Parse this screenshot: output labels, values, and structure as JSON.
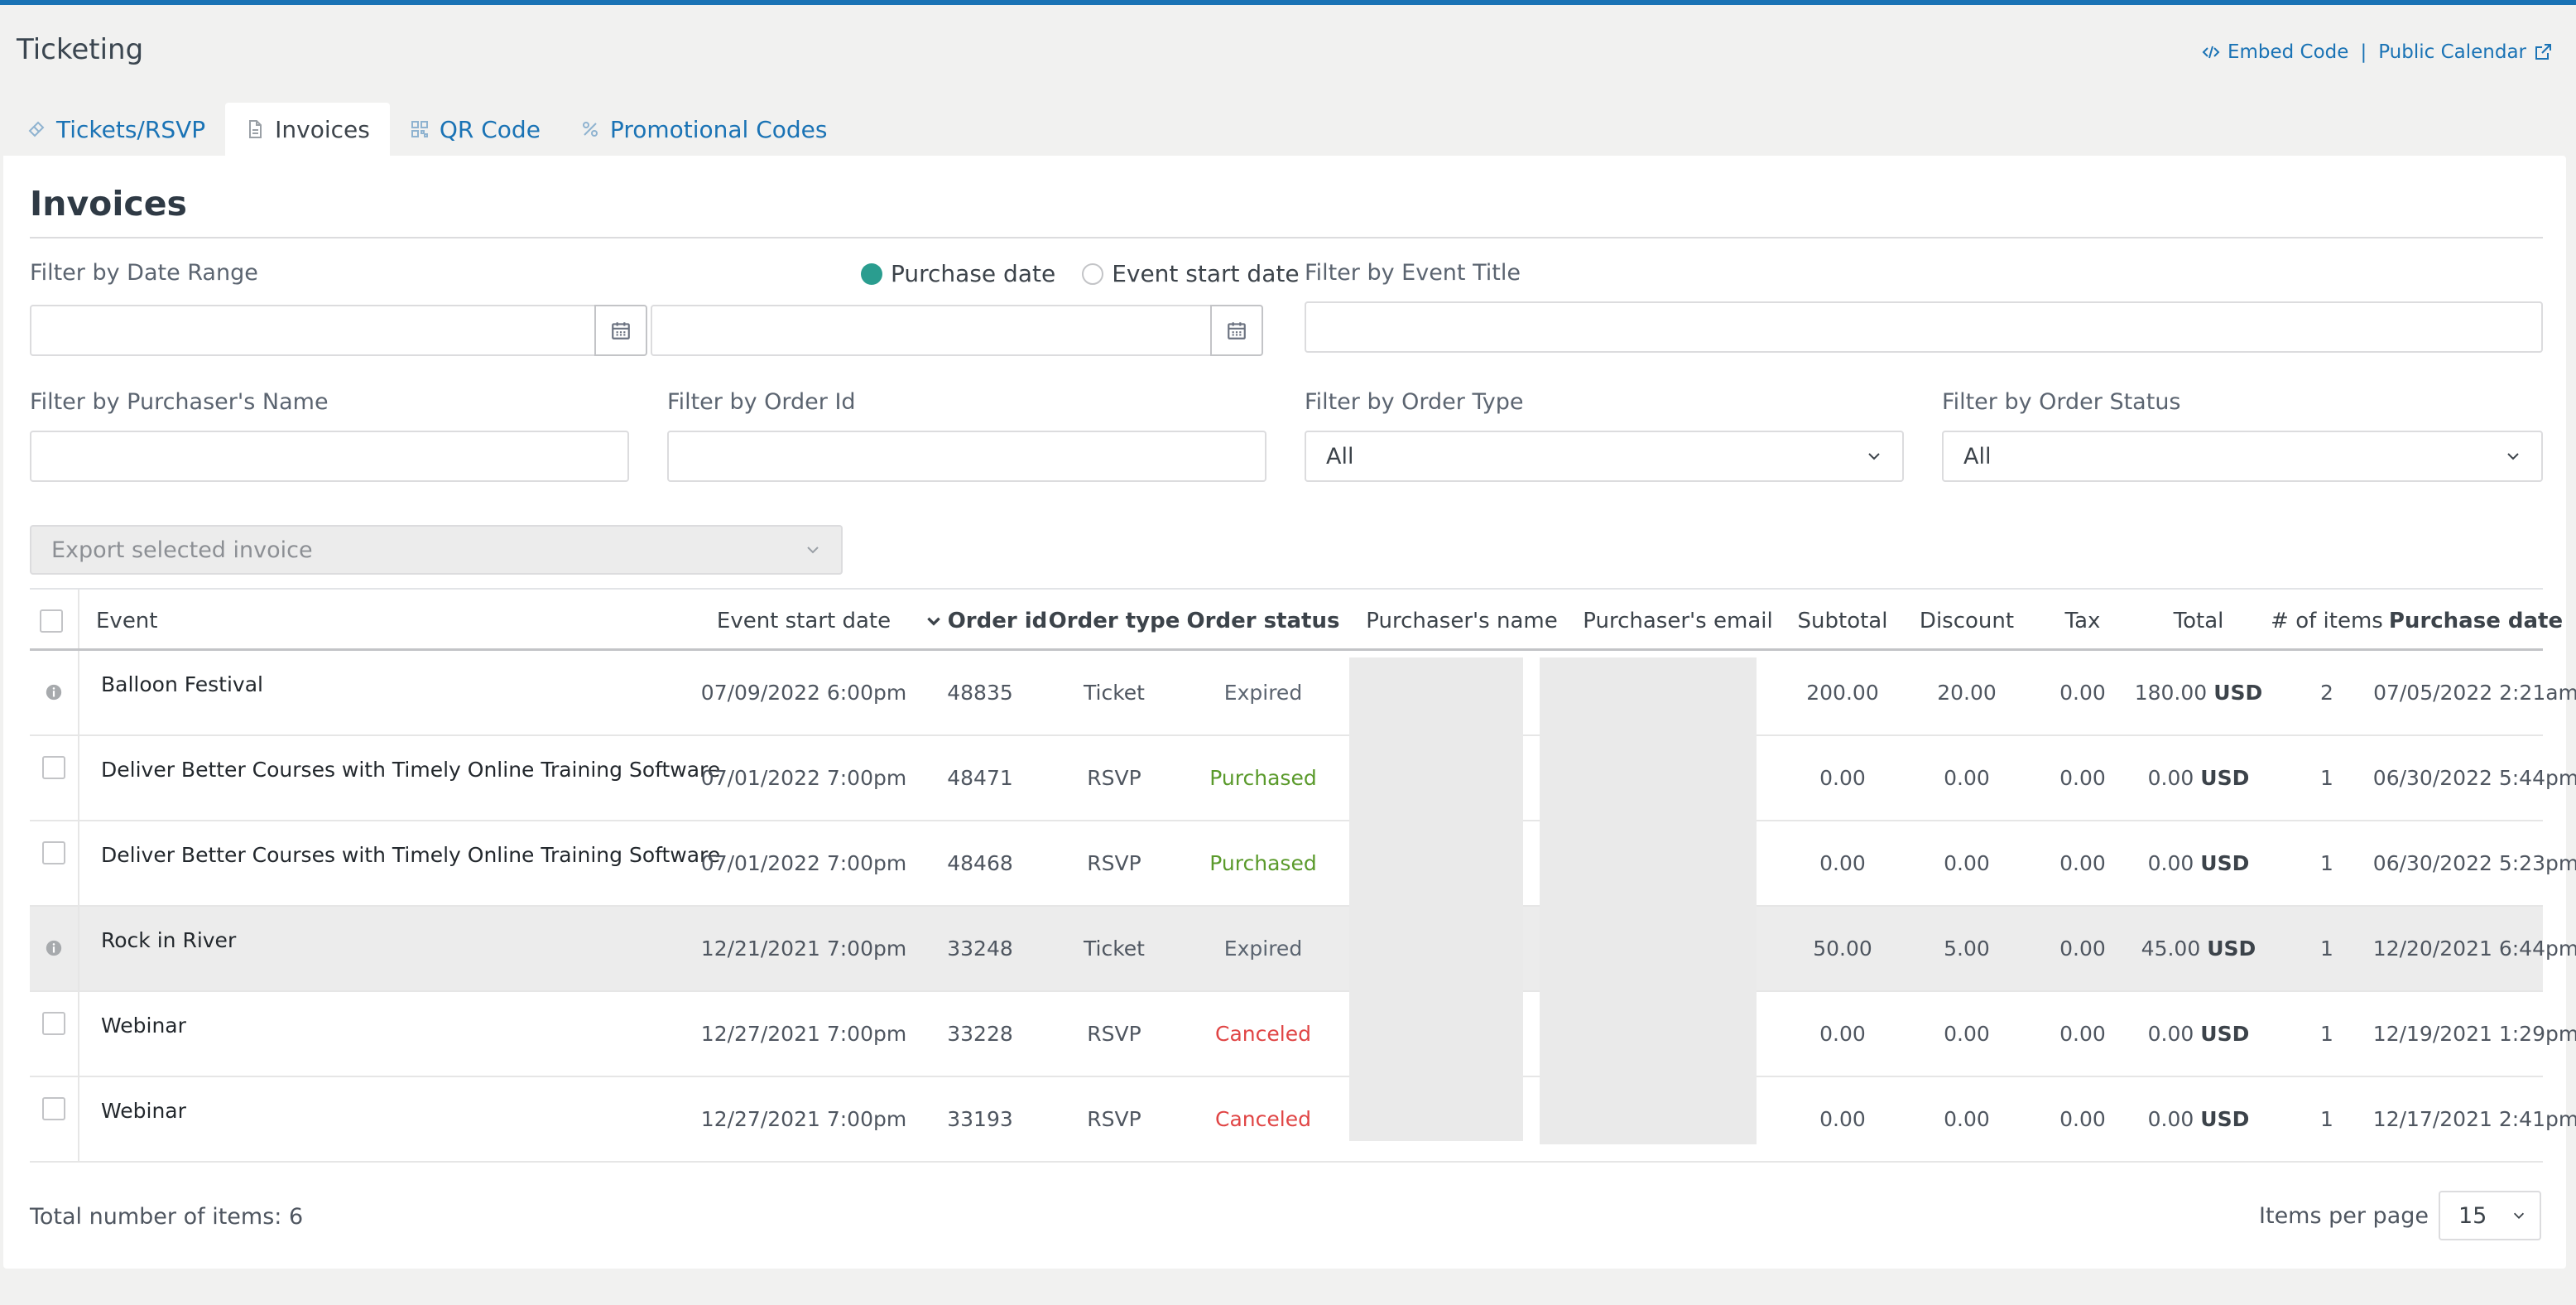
{
  "page": {
    "title": "Ticketing"
  },
  "top_links": {
    "embed": "Embed Code",
    "separator": "|",
    "calendar": "Public Calendar"
  },
  "tabs": [
    {
      "label": "Tickets/RSVP",
      "icon": "ticket-icon"
    },
    {
      "label": "Invoices",
      "icon": "document-icon",
      "active": true
    },
    {
      "label": "QR Code",
      "icon": "qr-icon"
    },
    {
      "label": "Promotional Codes",
      "icon": "percent-icon"
    }
  ],
  "invoices": {
    "title": "Invoices"
  },
  "filters": {
    "date_range_label": "Filter by Date Range",
    "radio_purchase": "Purchase date",
    "radio_event": "Event start date",
    "event_title_label": "Filter by Event Title",
    "purchaser_label": "Filter by Purchaser's Name",
    "order_id_label": "Filter by Order Id",
    "order_type_label": "Filter by Order Type",
    "order_type_value": "All",
    "order_status_label": "Filter by Order Status",
    "order_status_value": "All"
  },
  "export": {
    "label": "Export selected invoice"
  },
  "table": {
    "headers": {
      "event": "Event",
      "start": "Event start date",
      "order_id": "Order id",
      "order_type": "Order type",
      "order_status": "Order status",
      "purchaser_name": "Purchaser's name",
      "purchaser_email": "Purchaser's email",
      "subtotal": "Subtotal",
      "discount": "Discount",
      "tax": "Tax",
      "total": "Total",
      "items": "# of items",
      "purchase_date": "Purchase date"
    },
    "rows": [
      {
        "event": "Balloon Festival",
        "start": "07/09/2022 6:00pm",
        "order_id": "48835",
        "type": "Ticket",
        "status": "Expired",
        "subtotal": "200.00",
        "discount": "20.00",
        "tax": "0.00",
        "total": "180.00",
        "currency": "USD",
        "items": "2",
        "purchase": "07/05/2022 2:21am"
      },
      {
        "event": "Deliver Better Courses with Timely Online Training Software",
        "start": "07/01/2022 7:00pm",
        "order_id": "48471",
        "type": "RSVP",
        "status": "Purchased",
        "subtotal": "0.00",
        "discount": "0.00",
        "tax": "0.00",
        "total": "0.00",
        "currency": "USD",
        "items": "1",
        "purchase": "06/30/2022 5:44pm"
      },
      {
        "event": "Deliver Better Courses with Timely Online Training Software",
        "start": "07/01/2022 7:00pm",
        "order_id": "48468",
        "type": "RSVP",
        "status": "Purchased",
        "subtotal": "0.00",
        "discount": "0.00",
        "tax": "0.00",
        "total": "0.00",
        "currency": "USD",
        "items": "1",
        "purchase": "06/30/2022 5:23pm"
      },
      {
        "event": "Rock in River",
        "start": "12/21/2021 7:00pm",
        "order_id": "33248",
        "type": "Ticket",
        "status": "Expired",
        "subtotal": "50.00",
        "discount": "5.00",
        "tax": "0.00",
        "total": "45.00",
        "currency": "USD",
        "items": "1",
        "purchase": "12/20/2021 6:44pm"
      },
      {
        "event": "Webinar",
        "start": "12/27/2021 7:00pm",
        "order_id": "33228",
        "type": "RSVP",
        "status": "Canceled",
        "subtotal": "0.00",
        "discount": "0.00",
        "tax": "0.00",
        "total": "0.00",
        "currency": "USD",
        "items": "1",
        "purchase": "12/19/2021 1:29pm"
      },
      {
        "event": "Webinar",
        "start": "12/27/2021 7:00pm",
        "order_id": "33193",
        "type": "RSVP",
        "status": "Canceled",
        "subtotal": "0.00",
        "discount": "0.00",
        "tax": "0.00",
        "total": "0.00",
        "currency": "USD",
        "items": "1",
        "purchase": "12/17/2021 2:41pm"
      }
    ]
  },
  "footer": {
    "total_items": "Total number of items: 6",
    "per_page_label": "Items per page",
    "per_page_value": "15"
  },
  "colors": {
    "accent": "#1a73b5",
    "radio_on": "#2a9d8f",
    "purchased": "#5a9a2b",
    "canceled": "#e04545"
  }
}
